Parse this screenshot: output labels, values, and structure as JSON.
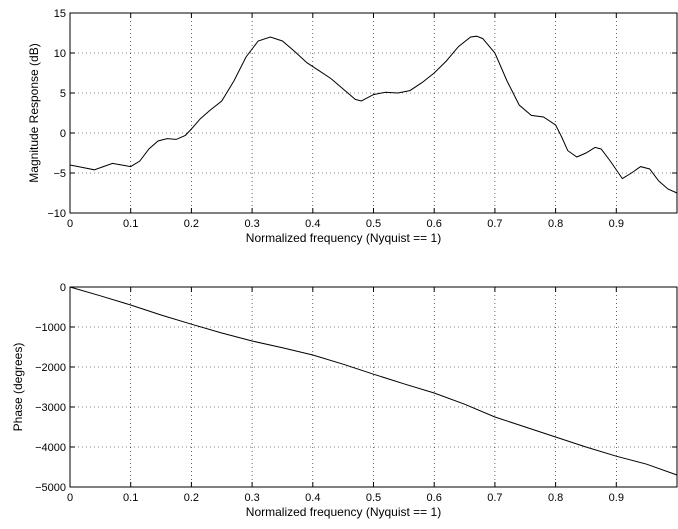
{
  "chart_data": [
    {
      "type": "line",
      "xlabel": "Normalized frequency (Nyquist == 1)",
      "ylabel": "Magnitude Response (dB)",
      "xlim": [
        0,
        1
      ],
      "ylim": [
        -10,
        15
      ],
      "xticks": [
        0,
        0.1,
        0.2,
        0.3,
        0.4,
        0.5,
        0.6,
        0.7,
        0.8,
        0.9
      ],
      "xtick_labels": [
        "0",
        "0.1",
        "0.2",
        "0.3",
        "0.4",
        "0.5",
        "0.6",
        "0.7",
        "0.8",
        "0.9"
      ],
      "yticks": [
        -10,
        -5,
        0,
        5,
        10,
        15
      ],
      "ytick_labels": [
        "−10",
        "−5",
        "0",
        "5",
        "10",
        "15"
      ],
      "grid": true,
      "series": [
        {
          "color": "#000000",
          "x": [
            0,
            0.02,
            0.04,
            0.055,
            0.07,
            0.085,
            0.1,
            0.115,
            0.13,
            0.145,
            0.16,
            0.175,
            0.19,
            0.2,
            0.215,
            0.23,
            0.25,
            0.27,
            0.29,
            0.31,
            0.33,
            0.35,
            0.37,
            0.39,
            0.41,
            0.43,
            0.45,
            0.47,
            0.48,
            0.5,
            0.52,
            0.54,
            0.56,
            0.58,
            0.6,
            0.62,
            0.64,
            0.66,
            0.67,
            0.68,
            0.7,
            0.72,
            0.74,
            0.76,
            0.78,
            0.8,
            0.81,
            0.82,
            0.835,
            0.85,
            0.865,
            0.875,
            0.89,
            0.91,
            0.925,
            0.94,
            0.955,
            0.97,
            0.985,
            1.0
          ],
          "y": [
            -4,
            -4.3,
            -4.6,
            -4.2,
            -3.8,
            -4.0,
            -4.2,
            -3.5,
            -2.0,
            -1.0,
            -0.7,
            -0.8,
            -0.3,
            0.5,
            1.8,
            2.8,
            4.0,
            6.5,
            9.5,
            11.5,
            12.0,
            11.5,
            10.2,
            8.8,
            7.8,
            6.8,
            5.5,
            4.2,
            4.0,
            4.8,
            5.1,
            5.0,
            5.3,
            6.3,
            7.5,
            9.0,
            10.8,
            12.0,
            12.1,
            11.8,
            10.0,
            6.5,
            3.5,
            2.2,
            2.0,
            1.0,
            -0.5,
            -2.2,
            -3.0,
            -2.5,
            -1.8,
            -2.0,
            -3.5,
            -5.7,
            -5.0,
            -4.2,
            -4.5,
            -6.0,
            -7.0,
            -7.5
          ]
        }
      ]
    },
    {
      "type": "line",
      "xlabel": "Normalized frequency (Nyquist == 1)",
      "ylabel": "Phase (degrees)",
      "xlim": [
        0,
        1
      ],
      "ylim": [
        -5000,
        0
      ],
      "xticks": [
        0,
        0.1,
        0.2,
        0.3,
        0.4,
        0.5,
        0.6,
        0.7,
        0.8,
        0.9
      ],
      "xtick_labels": [
        "0",
        "0.1",
        "0.2",
        "0.3",
        "0.4",
        "0.5",
        "0.6",
        "0.7",
        "0.8",
        "0.9"
      ],
      "yticks": [
        -5000,
        -4000,
        -3000,
        -2000,
        -1000,
        0
      ],
      "ytick_labels": [
        "−5000",
        "−4000",
        "−3000",
        "−2000",
        "−1000",
        "0"
      ],
      "grid": true,
      "series": [
        {
          "color": "#000000",
          "x": [
            0,
            0.05,
            0.1,
            0.15,
            0.2,
            0.25,
            0.3,
            0.35,
            0.4,
            0.45,
            0.5,
            0.55,
            0.6,
            0.65,
            0.7,
            0.75,
            0.8,
            0.85,
            0.9,
            0.95,
            1.0
          ],
          "y": [
            0,
            -220,
            -450,
            -700,
            -930,
            -1150,
            -1350,
            -1520,
            -1700,
            -1930,
            -2180,
            -2420,
            -2650,
            -2930,
            -3250,
            -3500,
            -3750,
            -4000,
            -4230,
            -4430,
            -4700
          ]
        }
      ]
    }
  ]
}
